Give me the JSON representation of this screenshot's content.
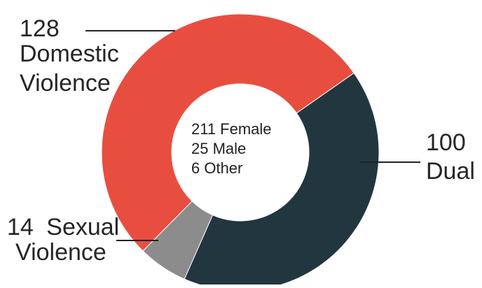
{
  "chart_data": {
    "type": "pie",
    "donut": true,
    "categories": [
      "Domestic Violence",
      "Dual",
      "Sexual Violence"
    ],
    "values": [
      128,
      100,
      14
    ],
    "colors": [
      "#e84e40",
      "#22363f",
      "#8c8c8c"
    ],
    "slice_labels": [
      {
        "value": "128",
        "lines": [
          "Domestic",
          "Violence"
        ]
      },
      {
        "value": "100",
        "lines": [
          "Dual"
        ]
      },
      {
        "value": "14",
        "lines": [
          "Sexual",
          "Violence"
        ]
      }
    ],
    "center_text": [
      "211 Female",
      "25 Male",
      "6 Other"
    ],
    "title": "",
    "legend": "none"
  }
}
